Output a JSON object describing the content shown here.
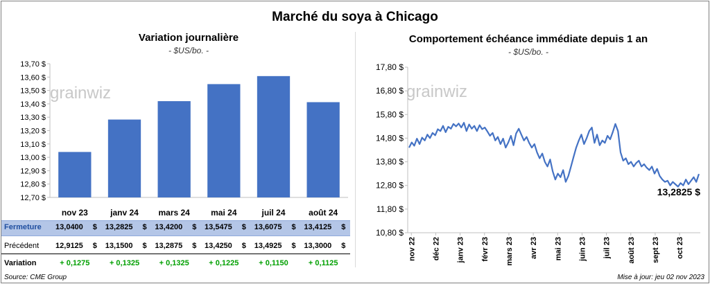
{
  "title": "Marché du soya à Chicago",
  "left_chart": {
    "title": "Variation journalière",
    "subtitle": "- $US/bo. -"
  },
  "right_chart": {
    "title": "Comportement échéance immédiate depuis 1 an",
    "subtitle": "- $US/bo. -",
    "last_value_label": "13,2825 $"
  },
  "watermark": "grainwiz",
  "table": {
    "currency": "$",
    "rows": [
      {
        "label": "Fermeture",
        "values": [
          "13,0400",
          "13,2825",
          "13,4200",
          "13,5475",
          "13,6075",
          "13,4125"
        ]
      },
      {
        "label": "Précédent",
        "values": [
          "12,9125",
          "13,1500",
          "13,2875",
          "13,4250",
          "13,4925",
          "13,3000"
        ]
      },
      {
        "label": "Variation",
        "values": [
          "+ 0,1275",
          "+ 0,1325",
          "+ 0,1325",
          "+ 0,1225",
          "+ 0,1150",
          "+ 0,1125"
        ]
      }
    ]
  },
  "footer": {
    "source": "Source: CME Group",
    "updated": "Mise à jour: jeu 02 nov 2023"
  },
  "colors": {
    "bar": "#4472c4",
    "line": "#4472c4",
    "fermeture_bg": "#b4c6e7",
    "variation_text": "#00a000"
  },
  "chart_data": [
    {
      "type": "bar",
      "categories": [
        "nov 23",
        "janv 24",
        "mars 24",
        "mai 24",
        "juil 24",
        "août 24"
      ],
      "values": [
        13.04,
        13.2825,
        13.42,
        13.5475,
        13.6075,
        13.4125
      ],
      "ylim": [
        12.7,
        13.7
      ],
      "yticks": [
        "12,70 $",
        "12,80 $",
        "12,90 $",
        "13,00 $",
        "13,10 $",
        "13,20 $",
        "13,30 $",
        "13,40 $",
        "13,50 $",
        "13,60 $",
        "13,70 $"
      ],
      "grid": false
    },
    {
      "type": "line",
      "ylim": [
        10.8,
        17.8
      ],
      "yticks": [
        "10,80 $",
        "11,80 $",
        "12,80 $",
        "13,80 $",
        "14,80 $",
        "15,80 $",
        "16,80 $",
        "17,80 $"
      ],
      "xticks": [
        "nov 22",
        "déc 22",
        "janv 23",
        "févr 23",
        "mars 23",
        "avr 23",
        "mai 23",
        "juin 23",
        "juil 23",
        "août 23",
        "sept 23",
        "oct 23"
      ],
      "grid": false,
      "series": [
        {
          "values": [
            14.4,
            14.62,
            14.48,
            14.78,
            14.55,
            14.82,
            14.7,
            14.95,
            14.8,
            15.02,
            14.92,
            15.18,
            15.1,
            15.32,
            15.05,
            15.28,
            15.2,
            15.4,
            15.3,
            15.42,
            15.25,
            15.45,
            15.1,
            15.38,
            15.2,
            15.32,
            15.1,
            15.35,
            15.18,
            15.25,
            15.08,
            14.9,
            15.02,
            14.7,
            14.85,
            14.55,
            14.78,
            14.4,
            14.62,
            14.9,
            14.5,
            15.0,
            15.2,
            14.95,
            14.7,
            14.85,
            14.6,
            14.4,
            14.55,
            14.2,
            13.95,
            14.15,
            13.8,
            13.6,
            13.9,
            13.4,
            13.05,
            13.3,
            13.15,
            13.45,
            12.95,
            13.2,
            13.6,
            14.0,
            14.4,
            14.7,
            14.95,
            14.55,
            14.8,
            15.1,
            15.25,
            14.6,
            14.95,
            14.5,
            14.7,
            14.6,
            14.9,
            14.75,
            15.05,
            15.4,
            15.1,
            14.2,
            13.85,
            13.95,
            13.7,
            13.8,
            13.6,
            13.75,
            13.85,
            13.6,
            13.7,
            13.55,
            13.45,
            13.6,
            13.3,
            13.5,
            13.2,
            13.05,
            12.95,
            13.0,
            12.8,
            12.95,
            12.85,
            12.75,
            12.9,
            12.8,
            13.05,
            12.85,
            13.0,
            13.15,
            12.95,
            13.2825
          ]
        }
      ]
    }
  ]
}
